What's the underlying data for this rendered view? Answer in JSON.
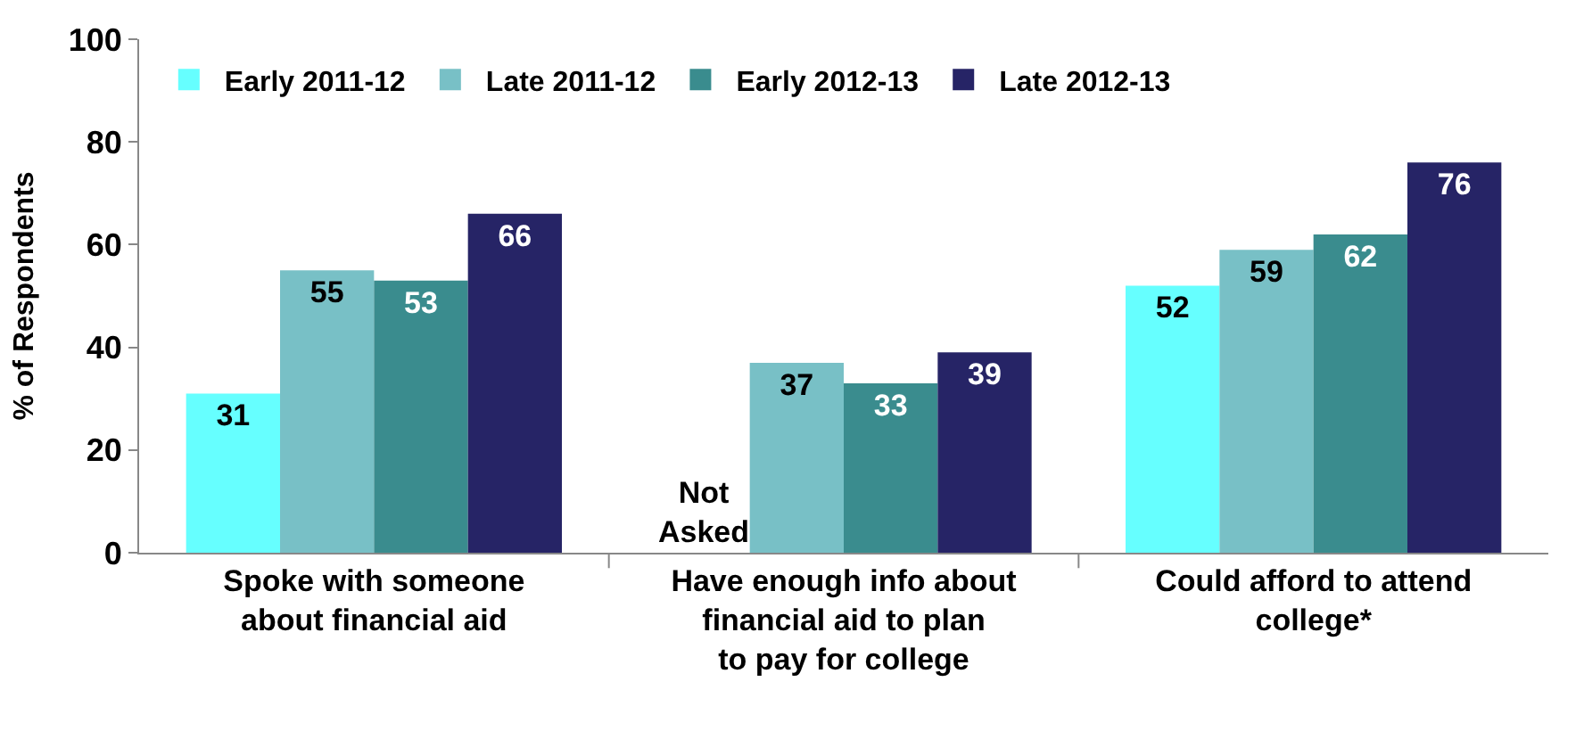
{
  "chart_data": {
    "type": "bar",
    "ylabel": "% of Respondents",
    "categories": [
      "Spoke with someone about financial aid",
      "Have enough info about financial aid to plan to pay for college",
      "Could afford to attend college*"
    ],
    "series": [
      {
        "name": "Early 2011-12",
        "color": "#66ffff",
        "values": [
          31,
          null,
          52
        ]
      },
      {
        "name": "Late 2011-12",
        "color": "#78c0c6",
        "values": [
          55,
          37,
          59
        ]
      },
      {
        "name": "Early 2012-13",
        "color": "#3a8c8e",
        "values": [
          53,
          33,
          62
        ]
      },
      {
        "name": "Late 2012-13",
        "color": "#262466",
        "values": [
          66,
          39,
          76
        ]
      }
    ],
    "ylim": [
      0,
      100
    ],
    "yticks": [
      0,
      20,
      40,
      60,
      80,
      100
    ],
    "legend": "top left",
    "data_labels": true,
    "annotations": [
      "Not Asked"
    ]
  }
}
